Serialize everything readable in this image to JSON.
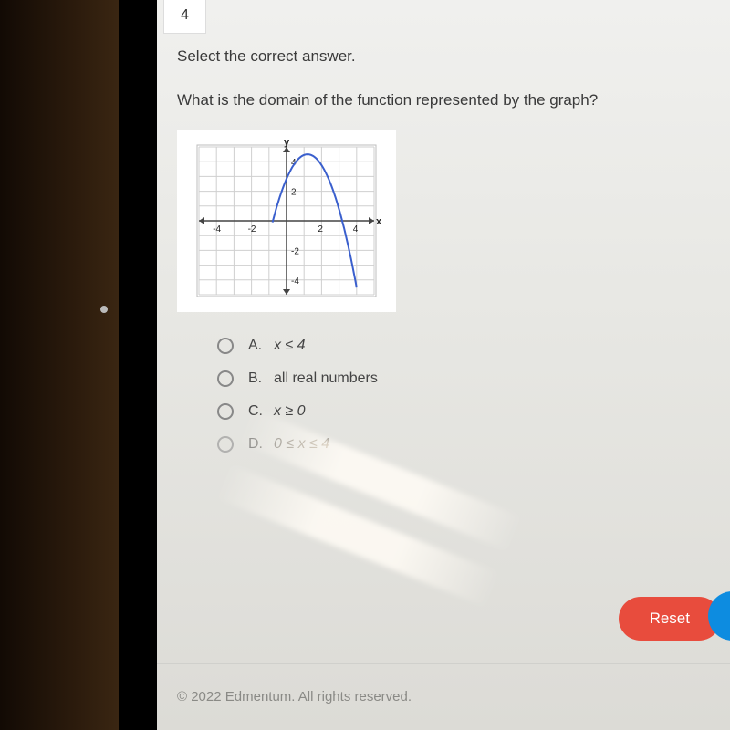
{
  "question_number": "4",
  "instruction": "Select the correct answer.",
  "prompt": "What is the domain of the function represented by the graph?",
  "graph": {
    "type": "parabola",
    "axis_labels": {
      "x": "x",
      "y": "y"
    },
    "xlim": [
      -5,
      5
    ],
    "ylim": [
      -5,
      5
    ],
    "xticks": [
      -4,
      -2,
      2,
      4
    ],
    "yticks": [
      -4,
      -2,
      2,
      4
    ],
    "grid_step": 1,
    "curve_color": "#3a5fcd",
    "curve_width": 2,
    "background": "#ffffff",
    "grid_color": "#cfcfcf",
    "axis_color": "#444444",
    "curve": {
      "vertex": [
        1.2,
        4.5
      ],
      "a": -1.15,
      "x_start": -0.8,
      "x_end": 4
    }
  },
  "options": [
    {
      "letter": "A.",
      "text": "x ≤ 4",
      "italic": true
    },
    {
      "letter": "B.",
      "text": "all real numbers",
      "italic": false
    },
    {
      "letter": "C.",
      "text": "x ≥ 0",
      "italic": true
    },
    {
      "letter": "D.",
      "text": "0 ≤ x ≤ 4",
      "italic": true
    }
  ],
  "buttons": {
    "reset": "Reset"
  },
  "footer": "© 2022 Edmentum. All rights reserved.",
  "colors": {
    "reset_bg": "#e84c3d",
    "next_bg": "#0d8ce0",
    "text": "#3a3a3a"
  }
}
